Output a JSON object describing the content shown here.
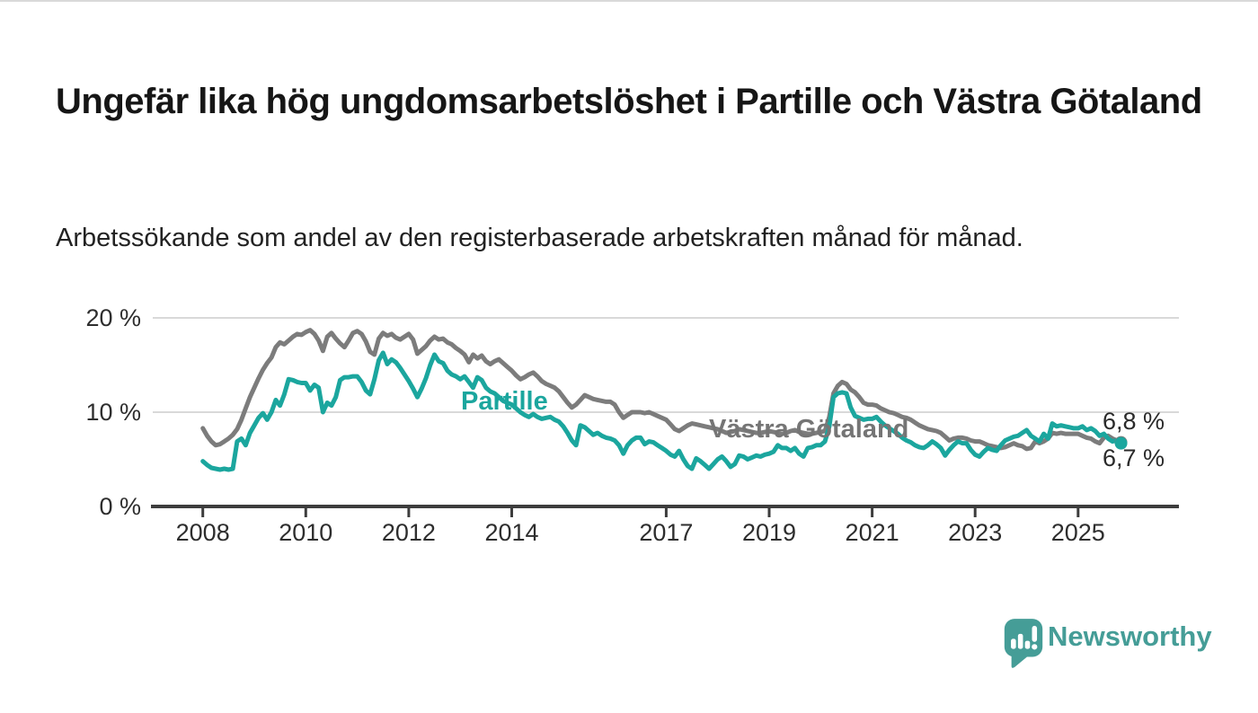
{
  "page": {
    "title": "Ungefär lika hög ungdomsarbetslöshet i Partille och Västra Götaland",
    "subtitle": "Arbetssökande som andel av den registerbaserade arbetskraften månad för månad."
  },
  "brand": {
    "name": "Newsworthy",
    "color": "#459d97",
    "icon": "bar-chart-speech-bubble-icon"
  },
  "colors": {
    "partille_line": "#1ba69e",
    "vastra_gotaland_line": "#7c7c7c",
    "vastra_gotaland_label": "#757575",
    "gridline": "#d9d9d9",
    "axis": "#3d3d3d",
    "text": "#2e2e2e"
  },
  "chart_data": {
    "type": "line",
    "title": "Ungefär lika hög ungdomsarbetslöshet i Partille och Västra Götaland",
    "subtitle": "Arbetssökande som andel av den registerbaserade arbetskraften månad för månad.",
    "x_unit": "year-month",
    "x_start": 2008.0,
    "x_step": 0.0833333,
    "xlim": [
      2007.0,
      2026.9
    ],
    "ylim": [
      0,
      21.6
    ],
    "grid": "horizontal",
    "legend_position": "inline-labels",
    "x_ticks": [
      2008,
      2010,
      2012,
      2014,
      2017,
      2019,
      2021,
      2023,
      2025
    ],
    "y_ticks": [
      {
        "value": 0,
        "label": "0 %"
      },
      {
        "value": 10,
        "label": "10 %"
      },
      {
        "value": 20,
        "label": "20 %"
      }
    ],
    "series": [
      {
        "name": "Västra Götaland",
        "color": "#7c7c7c",
        "end_value_label": "6,8 %",
        "values": [
          8.3,
          7.5,
          6.9,
          6.5,
          6.6,
          6.9,
          7.2,
          7.6,
          8.2,
          9.2,
          10.4,
          11.6,
          12.6,
          13.6,
          14.5,
          15.2,
          15.8,
          16.9,
          17.4,
          17.2,
          17.6,
          18.0,
          18.3,
          18.2,
          18.5,
          18.7,
          18.3,
          17.6,
          16.5,
          18.0,
          18.4,
          17.8,
          17.3,
          16.9,
          17.6,
          18.4,
          18.6,
          18.3,
          17.5,
          16.4,
          16.1,
          17.8,
          18.4,
          18.1,
          18.3,
          17.9,
          17.7,
          18.0,
          18.3,
          17.7,
          16.2,
          16.6,
          17.0,
          17.6,
          18.0,
          17.7,
          17.8,
          17.4,
          17.2,
          16.8,
          16.5,
          16.1,
          15.3,
          16.1,
          15.7,
          16.0,
          15.4,
          15.1,
          15.4,
          15.6,
          15.2,
          14.8,
          14.4,
          13.9,
          13.5,
          13.7,
          14.0,
          14.2,
          13.8,
          13.3,
          13.0,
          12.8,
          12.6,
          12.2,
          11.6,
          11.0,
          10.5,
          10.8,
          11.3,
          11.8,
          11.6,
          11.4,
          11.3,
          11.2,
          11.1,
          11.1,
          10.8,
          10.0,
          9.4,
          9.7,
          10.0,
          10.0,
          10.0,
          9.9,
          10.0,
          9.8,
          9.6,
          9.4,
          9.2,
          8.7,
          8.2,
          8.0,
          8.3,
          8.6,
          8.8,
          8.7,
          8.6,
          8.5,
          8.4,
          8.3,
          8.2,
          8.0,
          7.8,
          7.9,
          8.0,
          8.2,
          8.1,
          8.0,
          7.9,
          7.8,
          7.8,
          7.9,
          8.0,
          7.9,
          7.8,
          7.7,
          7.8,
          8.0,
          8.1,
          7.9,
          7.8,
          7.7,
          7.7,
          7.8,
          7.9,
          8.0,
          9.5,
          12.0,
          12.8,
          13.2,
          13.0,
          12.4,
          12.1,
          11.6,
          11.0,
          10.8,
          10.8,
          10.7,
          10.4,
          10.2,
          10.0,
          9.9,
          9.7,
          9.5,
          9.4,
          9.2,
          8.9,
          8.6,
          8.4,
          8.2,
          8.1,
          8.0,
          7.8,
          7.4,
          7.0,
          7.2,
          7.3,
          7.3,
          7.2,
          7.0,
          6.9,
          6.9,
          6.7,
          6.5,
          6.4,
          6.3,
          6.2,
          6.3,
          6.5,
          6.7,
          6.5,
          6.4,
          6.1,
          6.2,
          6.9,
          6.7,
          6.9,
          7.2,
          7.8,
          7.7,
          7.8,
          7.7,
          7.7,
          7.7,
          7.7,
          7.5,
          7.3,
          7.2,
          6.9,
          6.7,
          7.3,
          7.5,
          7.2,
          7.0,
          6.8
        ]
      },
      {
        "name": "Partille",
        "color": "#1ba69e",
        "end_value_label": "6,7 %",
        "values": [
          4.8,
          4.4,
          4.1,
          4.0,
          3.9,
          4.0,
          3.9,
          4.0,
          6.9,
          7.2,
          6.5,
          7.8,
          8.6,
          9.4,
          9.9,
          9.2,
          10.0,
          11.3,
          10.7,
          11.9,
          13.5,
          13.4,
          13.2,
          13.1,
          13.1,
          12.3,
          12.9,
          12.6,
          10.0,
          11.0,
          10.7,
          11.6,
          13.4,
          13.7,
          13.7,
          13.8,
          13.8,
          13.2,
          12.3,
          11.9,
          13.5,
          15.5,
          16.3,
          15.1,
          15.6,
          15.3,
          14.7,
          14.0,
          13.3,
          12.5,
          11.6,
          12.5,
          13.6,
          15.0,
          16.1,
          15.4,
          15.2,
          14.4,
          14.0,
          13.8,
          13.5,
          13.8,
          13.2,
          12.6,
          13.7,
          13.4,
          12.6,
          12.2,
          12.0,
          11.6,
          11.2,
          11.0,
          10.8,
          10.4,
          10.0,
          9.7,
          9.5,
          9.8,
          9.5,
          9.3,
          9.4,
          9.5,
          9.2,
          9.0,
          8.5,
          7.8,
          7.0,
          6.5,
          8.6,
          8.4,
          8.0,
          7.6,
          7.8,
          7.5,
          7.3,
          7.2,
          7.0,
          6.5,
          5.6,
          6.5,
          7.0,
          7.3,
          7.3,
          6.6,
          6.9,
          6.8,
          6.5,
          6.2,
          5.9,
          5.5,
          5.3,
          5.9,
          5.0,
          4.3,
          4.0,
          5.1,
          4.8,
          4.4,
          4.0,
          4.5,
          5.0,
          5.3,
          4.8,
          4.2,
          4.5,
          5.4,
          5.3,
          5.0,
          5.2,
          5.4,
          5.3,
          5.5,
          5.6,
          5.8,
          6.5,
          6.2,
          6.2,
          5.9,
          6.2,
          5.6,
          5.3,
          6.2,
          6.3,
          6.5,
          6.5,
          6.9,
          8.5,
          11.6,
          12.0,
          12.1,
          12.0,
          10.5,
          9.6,
          9.4,
          9.2,
          9.3,
          9.3,
          9.5,
          9.0,
          8.6,
          8.3,
          8.0,
          7.7,
          7.3,
          7.0,
          6.8,
          6.5,
          6.3,
          6.2,
          6.5,
          6.9,
          6.6,
          6.2,
          5.4,
          6.0,
          6.5,
          6.9,
          6.7,
          6.7,
          6.0,
          5.5,
          5.3,
          5.8,
          6.2,
          6.0,
          5.9,
          6.5,
          7.0,
          7.2,
          7.4,
          7.5,
          7.8,
          8.1,
          7.5,
          7.2,
          6.9,
          7.7,
          7.2,
          8.8,
          8.5,
          8.6,
          8.5,
          8.4,
          8.3,
          8.3,
          8.5,
          8.1,
          8.3,
          8.0,
          7.5,
          7.7,
          7.2,
          6.9,
          7.0,
          6.7
        ]
      }
    ]
  }
}
